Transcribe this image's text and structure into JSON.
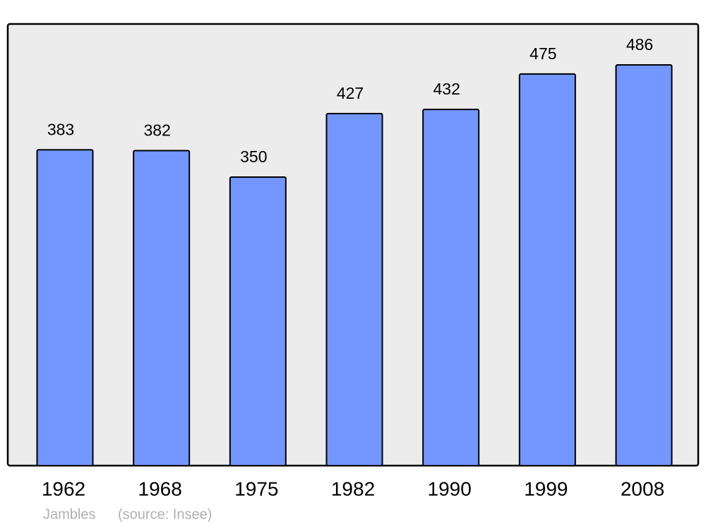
{
  "chart_data": {
    "type": "bar",
    "title": "Jambles",
    "source": "(source: Insee)",
    "categories": [
      "1962",
      "1968",
      "1975",
      "1982",
      "1990",
      "1999",
      "2008"
    ],
    "values": [
      383,
      382,
      350,
      427,
      432,
      475,
      486
    ],
    "color": "#7397ff"
  }
}
